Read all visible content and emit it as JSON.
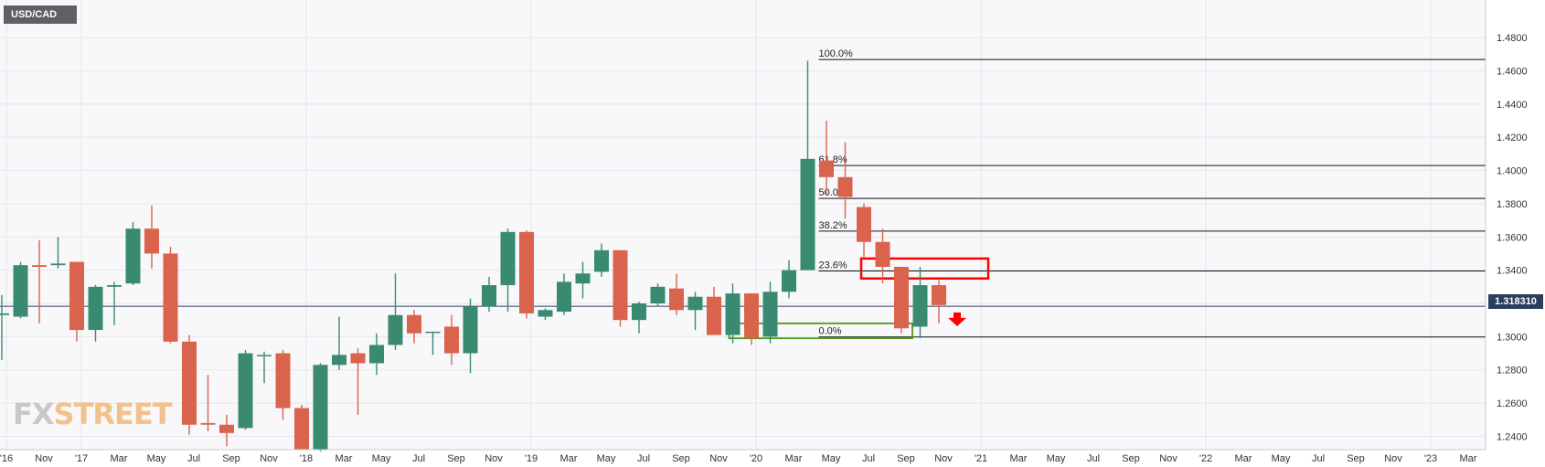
{
  "symbol": "USD/CAD",
  "logo": {
    "part1": "FX",
    "part2": "STREET"
  },
  "current_price": {
    "label": "1.318310",
    "value": 1.31831
  },
  "colors": {
    "bullish": "#3a8a72",
    "bearish": "#d9634d",
    "resistance_box": "#ff0000",
    "support_box": "#4a9a1a",
    "arrow": "#ff0000",
    "grid": "#e6e6ec",
    "price_line": "#2c3e5d"
  },
  "chart_data": {
    "type": "candlestick",
    "title": "USD/CAD",
    "timeframe": "monthly",
    "ylim": [
      1.232,
      1.496
    ],
    "y_ticks": [
      "1.2400",
      "1.2600",
      "1.2800",
      "1.3000",
      "1.3200",
      "1.3400",
      "1.3600",
      "1.3800",
      "1.4000",
      "1.4200",
      "1.4400",
      "1.4600",
      "1.4800"
    ],
    "x_ticks": [
      "'16",
      "Nov",
      "'17",
      "Mar",
      "May",
      "Jul",
      "Sep",
      "Nov",
      "'18",
      "Mar",
      "May",
      "Jul",
      "Sep",
      "Nov",
      "'19",
      "Mar",
      "May",
      "Jul",
      "Sep",
      "Nov",
      "'20",
      "Mar",
      "May",
      "Jul",
      "Sep",
      "Nov",
      "'21",
      "Mar",
      "May",
      "Jul",
      "Sep",
      "Nov",
      "'22",
      "Mar",
      "May",
      "Jul",
      "Sep",
      "Nov",
      "'23",
      "Mar"
    ],
    "candles": [
      {
        "o": 1.313,
        "h": 1.325,
        "l": 1.286,
        "c": 1.314
      },
      {
        "o": 1.312,
        "h": 1.345,
        "l": 1.311,
        "c": 1.343
      },
      {
        "o": 1.343,
        "h": 1.358,
        "l": 1.308,
        "c": 1.342
      },
      {
        "o": 1.343,
        "h": 1.36,
        "l": 1.341,
        "c": 1.344
      },
      {
        "o": 1.345,
        "h": 1.345,
        "l": 1.297,
        "c": 1.304
      },
      {
        "o": 1.304,
        "h": 1.331,
        "l": 1.297,
        "c": 1.33
      },
      {
        "o": 1.33,
        "h": 1.333,
        "l": 1.307,
        "c": 1.331
      },
      {
        "o": 1.332,
        "h": 1.369,
        "l": 1.331,
        "c": 1.365
      },
      {
        "o": 1.365,
        "h": 1.379,
        "l": 1.341,
        "c": 1.35
      },
      {
        "o": 1.35,
        "h": 1.354,
        "l": 1.296,
        "c": 1.297
      },
      {
        "o": 1.297,
        "h": 1.301,
        "l": 1.241,
        "c": 1.247
      },
      {
        "o": 1.248,
        "h": 1.277,
        "l": 1.243,
        "c": 1.247
      },
      {
        "o": 1.247,
        "h": 1.253,
        "l": 1.234,
        "c": 1.242
      },
      {
        "o": 1.245,
        "h": 1.292,
        "l": 1.244,
        "c": 1.29
      },
      {
        "o": 1.289,
        "h": 1.291,
        "l": 1.272,
        "c": 1.289
      },
      {
        "o": 1.29,
        "h": 1.292,
        "l": 1.25,
        "c": 1.257
      },
      {
        "o": 1.257,
        "h": 1.259,
        "l": 1.233,
        "c": 1.232
      },
      {
        "o": 1.232,
        "h": 1.284,
        "l": 1.231,
        "c": 1.283
      },
      {
        "o": 1.283,
        "h": 1.312,
        "l": 1.28,
        "c": 1.289
      },
      {
        "o": 1.29,
        "h": 1.293,
        "l": 1.253,
        "c": 1.284
      },
      {
        "o": 1.284,
        "h": 1.302,
        "l": 1.277,
        "c": 1.295
      },
      {
        "o": 1.295,
        "h": 1.338,
        "l": 1.292,
        "c": 1.313
      },
      {
        "o": 1.313,
        "h": 1.316,
        "l": 1.296,
        "c": 1.302
      },
      {
        "o": 1.303,
        "h": 1.303,
        "l": 1.289,
        "c": 1.303
      },
      {
        "o": 1.306,
        "h": 1.313,
        "l": 1.283,
        "c": 1.29
      },
      {
        "o": 1.29,
        "h": 1.323,
        "l": 1.278,
        "c": 1.318
      },
      {
        "o": 1.318,
        "h": 1.336,
        "l": 1.315,
        "c": 1.331
      },
      {
        "o": 1.331,
        "h": 1.365,
        "l": 1.315,
        "c": 1.363
      },
      {
        "o": 1.363,
        "h": 1.364,
        "l": 1.311,
        "c": 1.314
      },
      {
        "o": 1.312,
        "h": 1.317,
        "l": 1.31,
        "c": 1.316
      },
      {
        "o": 1.315,
        "h": 1.338,
        "l": 1.313,
        "c": 1.333
      },
      {
        "o": 1.332,
        "h": 1.345,
        "l": 1.323,
        "c": 1.338
      },
      {
        "o": 1.339,
        "h": 1.356,
        "l": 1.336,
        "c": 1.352
      },
      {
        "o": 1.352,
        "h": 1.352,
        "l": 1.306,
        "c": 1.31
      },
      {
        "o": 1.31,
        "h": 1.321,
        "l": 1.302,
        "c": 1.32
      },
      {
        "o": 1.32,
        "h": 1.332,
        "l": 1.318,
        "c": 1.33
      },
      {
        "o": 1.329,
        "h": 1.338,
        "l": 1.313,
        "c": 1.316
      },
      {
        "o": 1.316,
        "h": 1.327,
        "l": 1.304,
        "c": 1.324
      },
      {
        "o": 1.324,
        "h": 1.33,
        "l": 1.302,
        "c": 1.301
      },
      {
        "o": 1.301,
        "h": 1.332,
        "l": 1.296,
        "c": 1.326
      },
      {
        "o": 1.326,
        "h": 1.326,
        "l": 1.295,
        "c": 1.299
      },
      {
        "o": 1.3,
        "h": 1.333,
        "l": 1.296,
        "c": 1.327
      },
      {
        "o": 1.327,
        "h": 1.346,
        "l": 1.323,
        "c": 1.34
      },
      {
        "o": 1.34,
        "h": 1.466,
        "l": 1.34,
        "c": 1.407
      },
      {
        "o": 1.406,
        "h": 1.43,
        "l": 1.385,
        "c": 1.396
      },
      {
        "o": 1.396,
        "h": 1.417,
        "l": 1.371,
        "c": 1.384
      },
      {
        "o": 1.378,
        "h": 1.38,
        "l": 1.348,
        "c": 1.357
      },
      {
        "o": 1.357,
        "h": 1.365,
        "l": 1.332,
        "c": 1.342
      },
      {
        "o": 1.342,
        "h": 1.342,
        "l": 1.302,
        "c": 1.305
      },
      {
        "o": 1.306,
        "h": 1.342,
        "l": 1.299,
        "c": 1.331
      },
      {
        "o": 1.331,
        "h": 1.334,
        "l": 1.308,
        "c": 1.319
      }
    ],
    "fibonacci": [
      {
        "label": "100.0%",
        "value": 1.4668
      },
      {
        "label": "61.8%",
        "value": 1.403
      },
      {
        "label": "50.0%",
        "value": 1.3832
      },
      {
        "label": "38.2%",
        "value": 1.3635
      },
      {
        "label": "23.6%",
        "value": 1.3395
      },
      {
        "label": "0.0%",
        "value": 1.2998
      }
    ],
    "annotations": {
      "resistance_zone": {
        "from_index": 46,
        "to_index": 52,
        "low": 1.335,
        "high": 1.347
      },
      "support_zone": {
        "from_index": 39,
        "to_index": 48,
        "low": 1.299,
        "high": 1.308
      },
      "down_arrow": {
        "index": 50,
        "price": 1.308
      }
    }
  }
}
